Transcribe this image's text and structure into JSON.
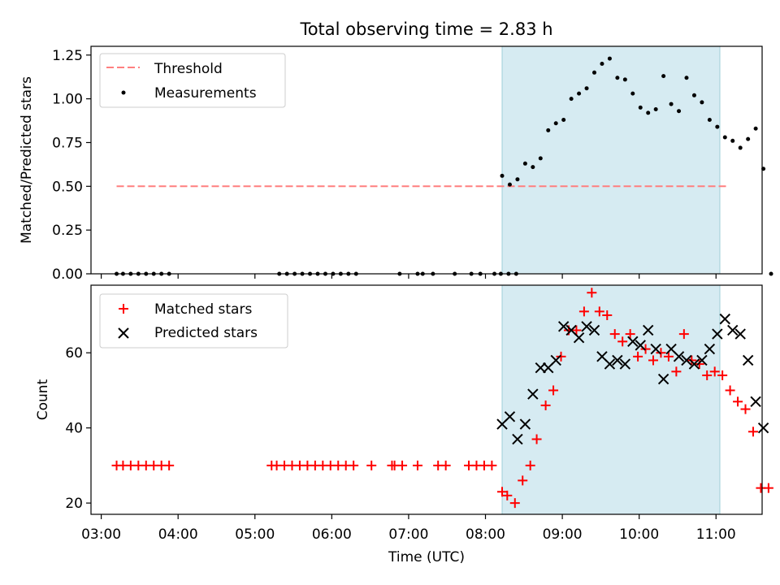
{
  "title": "Total observing time = 2.83 h",
  "chart_data": [
    {
      "type": "scatter",
      "panel": "top",
      "ylabel": "Matched/Predicted stars",
      "xlabel": "",
      "xlim": [
        "02:52",
        "11:36"
      ],
      "ylim": [
        0,
        1.3
      ],
      "yticks": [
        "0.00",
        "0.25",
        "0.50",
        "0.75",
        "1.00",
        "1.25"
      ],
      "xticks": [
        "03:00",
        "04:00",
        "05:00",
        "06:00",
        "07:00",
        "08:00",
        "09:00",
        "10:00",
        "11:00"
      ],
      "shaded_interval": [
        "08:13",
        "11:03"
      ],
      "legend_position": "upper left",
      "threshold": {
        "name": "Threshold",
        "x": [
          "03:12",
          "11:10"
        ],
        "value": 0.5,
        "color": "#ff7f7f",
        "style": "dashed"
      },
      "series": [
        {
          "name": "Measurements",
          "color": "#000000",
          "points": [
            [
              "03:12",
              0
            ],
            [
              "03:17",
              0
            ],
            [
              "03:23",
              0
            ],
            [
              "03:29",
              0
            ],
            [
              "03:35",
              0
            ],
            [
              "03:41",
              0
            ],
            [
              "03:47",
              0
            ],
            [
              "03:53",
              0
            ],
            [
              "05:19",
              0
            ],
            [
              "05:25",
              0
            ],
            [
              "05:31",
              0
            ],
            [
              "05:37",
              0
            ],
            [
              "05:43",
              0
            ],
            [
              "05:49",
              0
            ],
            [
              "05:55",
              0
            ],
            [
              "06:01",
              0
            ],
            [
              "06:07",
              0
            ],
            [
              "06:13",
              0
            ],
            [
              "06:19",
              0
            ],
            [
              "06:53",
              0
            ],
            [
              "07:07",
              0
            ],
            [
              "07:11",
              0
            ],
            [
              "07:19",
              0
            ],
            [
              "07:36",
              0
            ],
            [
              "07:49",
              0
            ],
            [
              "07:56",
              0
            ],
            [
              "08:07",
              0
            ],
            [
              "08:12",
              0
            ],
            [
              "08:18",
              0
            ],
            [
              "08:24",
              0
            ],
            [
              "08:13",
              0.56
            ],
            [
              "08:19",
              0.51
            ],
            [
              "08:25",
              0.54
            ],
            [
              "08:31",
              0.63
            ],
            [
              "08:37",
              0.61
            ],
            [
              "08:43",
              0.66
            ],
            [
              "08:49",
              0.82
            ],
            [
              "08:55",
              0.86
            ],
            [
              "09:01",
              0.88
            ],
            [
              "09:07",
              1.0
            ],
            [
              "09:13",
              1.03
            ],
            [
              "09:19",
              1.06
            ],
            [
              "09:25",
              1.15
            ],
            [
              "09:31",
              1.2
            ],
            [
              "09:37",
              1.23
            ],
            [
              "09:43",
              1.12
            ],
            [
              "09:49",
              1.11
            ],
            [
              "09:55",
              1.03
            ],
            [
              "10:01",
              0.95
            ],
            [
              "10:07",
              0.92
            ],
            [
              "10:13",
              0.94
            ],
            [
              "10:19",
              1.13
            ],
            [
              "10:25",
              0.97
            ],
            [
              "10:31",
              0.93
            ],
            [
              "10:37",
              1.12
            ],
            [
              "10:43",
              1.02
            ],
            [
              "10:49",
              0.98
            ],
            [
              "10:55",
              0.88
            ],
            [
              "11:01",
              0.84
            ],
            [
              "11:07",
              0.78
            ],
            [
              "11:13",
              0.76
            ],
            [
              "11:19",
              0.72
            ],
            [
              "11:25",
              0.77
            ],
            [
              "11:31",
              0.83
            ],
            [
              "11:37",
              0.6
            ],
            [
              "11:43",
              0
            ]
          ]
        }
      ]
    },
    {
      "type": "scatter",
      "panel": "bottom",
      "ylabel": "Count",
      "xlabel": "Time (UTC)",
      "xlim": [
        "02:52",
        "11:36"
      ],
      "ylim": [
        17,
        78
      ],
      "yticks": [
        "20",
        "40",
        "60"
      ],
      "xticks": [
        "03:00",
        "04:00",
        "05:00",
        "06:00",
        "07:00",
        "08:00",
        "09:00",
        "10:00",
        "11:00"
      ],
      "shaded_interval": [
        "08:13",
        "11:03"
      ],
      "legend_position": "upper left",
      "series": [
        {
          "name": "Matched stars",
          "marker": "plus",
          "color": "#ff0000",
          "points": [
            [
              "03:12",
              30
            ],
            [
              "03:17",
              30
            ],
            [
              "03:23",
              30
            ],
            [
              "03:29",
              30
            ],
            [
              "03:35",
              30
            ],
            [
              "03:41",
              30
            ],
            [
              "03:47",
              30
            ],
            [
              "03:53",
              30
            ],
            [
              "05:13",
              30
            ],
            [
              "05:17",
              30
            ],
            [
              "05:23",
              30
            ],
            [
              "05:29",
              30
            ],
            [
              "05:35",
              30
            ],
            [
              "05:41",
              30
            ],
            [
              "05:47",
              30
            ],
            [
              "05:53",
              30
            ],
            [
              "05:59",
              30
            ],
            [
              "06:05",
              30
            ],
            [
              "06:11",
              30
            ],
            [
              "06:17",
              30
            ],
            [
              "06:31",
              30
            ],
            [
              "06:47",
              30
            ],
            [
              "06:49",
              30
            ],
            [
              "06:55",
              30
            ],
            [
              "07:07",
              30
            ],
            [
              "07:23",
              30
            ],
            [
              "07:29",
              30
            ],
            [
              "07:47",
              30
            ],
            [
              "07:53",
              30
            ],
            [
              "07:59",
              30
            ],
            [
              "08:05",
              30
            ],
            [
              "08:13",
              23
            ],
            [
              "08:17",
              22
            ],
            [
              "08:23",
              20
            ],
            [
              "08:29",
              26
            ],
            [
              "08:35",
              30
            ],
            [
              "08:40",
              37
            ],
            [
              "08:47",
              46
            ],
            [
              "08:53",
              50
            ],
            [
              "08:59",
              59
            ],
            [
              "09:05",
              66
            ],
            [
              "09:11",
              66
            ],
            [
              "09:17",
              71
            ],
            [
              "09:23",
              76
            ],
            [
              "09:29",
              71
            ],
            [
              "09:35",
              70
            ],
            [
              "09:41",
              65
            ],
            [
              "09:47",
              63
            ],
            [
              "09:53",
              65
            ],
            [
              "09:59",
              59
            ],
            [
              "10:05",
              61
            ],
            [
              "10:11",
              58
            ],
            [
              "10:17",
              60
            ],
            [
              "10:23",
              59
            ],
            [
              "10:29",
              55
            ],
            [
              "10:35",
              65
            ],
            [
              "10:41",
              58
            ],
            [
              "10:47",
              57
            ],
            [
              "10:53",
              54
            ],
            [
              "10:59",
              55
            ],
            [
              "11:05",
              54
            ],
            [
              "11:11",
              50
            ],
            [
              "11:17",
              47
            ],
            [
              "11:23",
              45
            ],
            [
              "11:29",
              39
            ],
            [
              "11:35",
              24
            ],
            [
              "11:41",
              24
            ]
          ]
        },
        {
          "name": "Predicted stars",
          "marker": "x",
          "color": "#000000",
          "points": [
            [
              "08:13",
              41
            ],
            [
              "08:19",
              43
            ],
            [
              "08:25",
              37
            ],
            [
              "08:31",
              41
            ],
            [
              "08:37",
              49
            ],
            [
              "08:43",
              56
            ],
            [
              "08:49",
              56
            ],
            [
              "08:55",
              58
            ],
            [
              "09:01",
              67
            ],
            [
              "09:07",
              66
            ],
            [
              "09:13",
              64
            ],
            [
              "09:19",
              67
            ],
            [
              "09:25",
              66
            ],
            [
              "09:31",
              59
            ],
            [
              "09:37",
              57
            ],
            [
              "09:43",
              58
            ],
            [
              "09:49",
              57
            ],
            [
              "09:55",
              63
            ],
            [
              "10:01",
              62
            ],
            [
              "10:07",
              66
            ],
            [
              "10:13",
              61
            ],
            [
              "10:19",
              53
            ],
            [
              "10:25",
              61
            ],
            [
              "10:31",
              59
            ],
            [
              "10:37",
              58
            ],
            [
              "10:43",
              57
            ],
            [
              "10:49",
              58
            ],
            [
              "10:55",
              61
            ],
            [
              "11:01",
              65
            ],
            [
              "11:07",
              69
            ],
            [
              "11:13",
              66
            ],
            [
              "11:19",
              65
            ],
            [
              "11:25",
              58
            ],
            [
              "11:31",
              47
            ],
            [
              "11:37",
              40
            ]
          ]
        }
      ]
    }
  ]
}
